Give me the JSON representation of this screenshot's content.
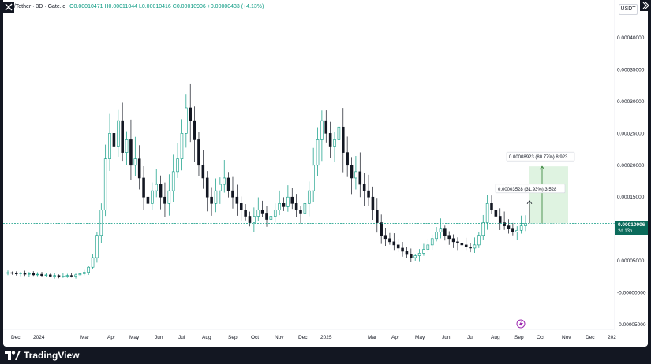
{
  "header": {
    "title": "nu/Tether · 3D · Gate.io",
    "ohlc": "O0.00010471 H0.00011044 L0.00010416 C0.00010906 +0.00000433 (+4.13%)"
  },
  "toolbar": {
    "currency_label": "USDT"
  },
  "y_axis": {
    "labels": [
      "0.00040000",
      "0.00035000",
      "0.00030000",
      "0.00025000",
      "0.00020000",
      "0.00015000",
      "0.00010000",
      "0.00005000",
      "-0.00000000",
      "-0.00005000"
    ],
    "values": [
      0.0004,
      0.00035,
      0.0003,
      0.00025,
      0.0002,
      0.00015,
      0.0001,
      5e-05,
      0,
      -5e-05
    ]
  },
  "x_axis": {
    "labels": [
      "Dec",
      "2024",
      "Mar",
      "Apr",
      "May",
      "Jun",
      "Jul",
      "Aug",
      "Sep",
      "Oct",
      "Nov",
      "Dec",
      "2025",
      "Mar",
      "Apr",
      "May",
      "Jun",
      "Jul",
      "Aug",
      "Sep",
      "Oct",
      "Nov",
      "Dec",
      "202"
    ]
  },
  "last_price": {
    "value": "0.00010906",
    "countdown": "2d 13h"
  },
  "measures": [
    {
      "label": "0.00008923 (80.77%) 8,923"
    },
    {
      "label": "0.00003528 (31.93%) 3,528"
    }
  ],
  "branding": {
    "logo_text": "TradingView"
  },
  "colors": {
    "up": "#089981",
    "down": "#131722",
    "price_line": "#089981",
    "measure_fill": "#d7f0d9",
    "background": "#131722"
  },
  "chart_data": {
    "type": "candlestick",
    "ylim": [
      -5e-05,
      0.00042
    ],
    "close_series": [
      3.15e-05,
      3.05e-05,
      3e-05,
      3.1e-05,
      2.9e-05,
      3e-05,
      2.8e-05,
      2.9e-05,
      2.7e-05,
      2.8e-05,
      2.6e-05,
      2.7e-05,
      2.5e-05,
      2.6e-05,
      2.7e-05,
      2.6e-05,
      2.8e-05,
      3e-05,
      3.2e-05,
      4e-05,
      5.5e-05,
      9e-05,
      0.00013,
      0.00021,
      0.00025,
      0.00023,
      0.00027,
      0.00022,
      0.00024,
      0.0002,
      0.00021,
      0.00018,
      0.00015,
      0.00014,
      0.00016,
      0.00017,
      0.00015,
      0.00014,
      0.00016,
      0.00019,
      0.00021,
      0.00025,
      0.00029,
      0.00027,
      0.00024,
      0.0002,
      0.00018,
      0.00015,
      0.00014,
      0.00016,
      0.00017,
      0.00018,
      0.00016,
      0.00015,
      0.00014,
      0.00013,
      0.00012,
      0.00011,
      0.00012,
      0.00013,
      0.000125,
      0.000115,
      0.00012,
      0.00013,
      0.00014,
      0.000135,
      0.00015,
      0.00014,
      0.00013,
      0.000125,
      0.00014,
      0.00016,
      0.0002,
      0.00024,
      0.00027,
      0.00025,
      0.00023,
      0.00024,
      0.00026,
      0.00022,
      0.0002,
      0.00018,
      0.00019,
      0.00017,
      0.00016,
      0.00015,
      0.00013,
      0.00011,
      9e-05,
      8.5e-05,
      8e-05,
      7.5e-05,
      7e-05,
      6.5e-05,
      6e-05,
      5.5e-05,
      5.8e-05,
      6.2e-05,
      6.8e-05,
      7.5e-05,
      8.5e-05,
      9.5e-05,
      0.0001,
      9e-05,
      8.5e-05,
      8e-05,
      7.8e-05,
      7.5e-05,
      7.2e-05,
      7e-05,
      7.5e-05,
      9e-05,
      0.00011,
      0.00014,
      0.00013,
      0.00012,
      0.00011,
      0.000105,
      0.0001,
      9.5e-05,
      9.8e-05,
      0.000105,
      0.000109
    ]
  }
}
